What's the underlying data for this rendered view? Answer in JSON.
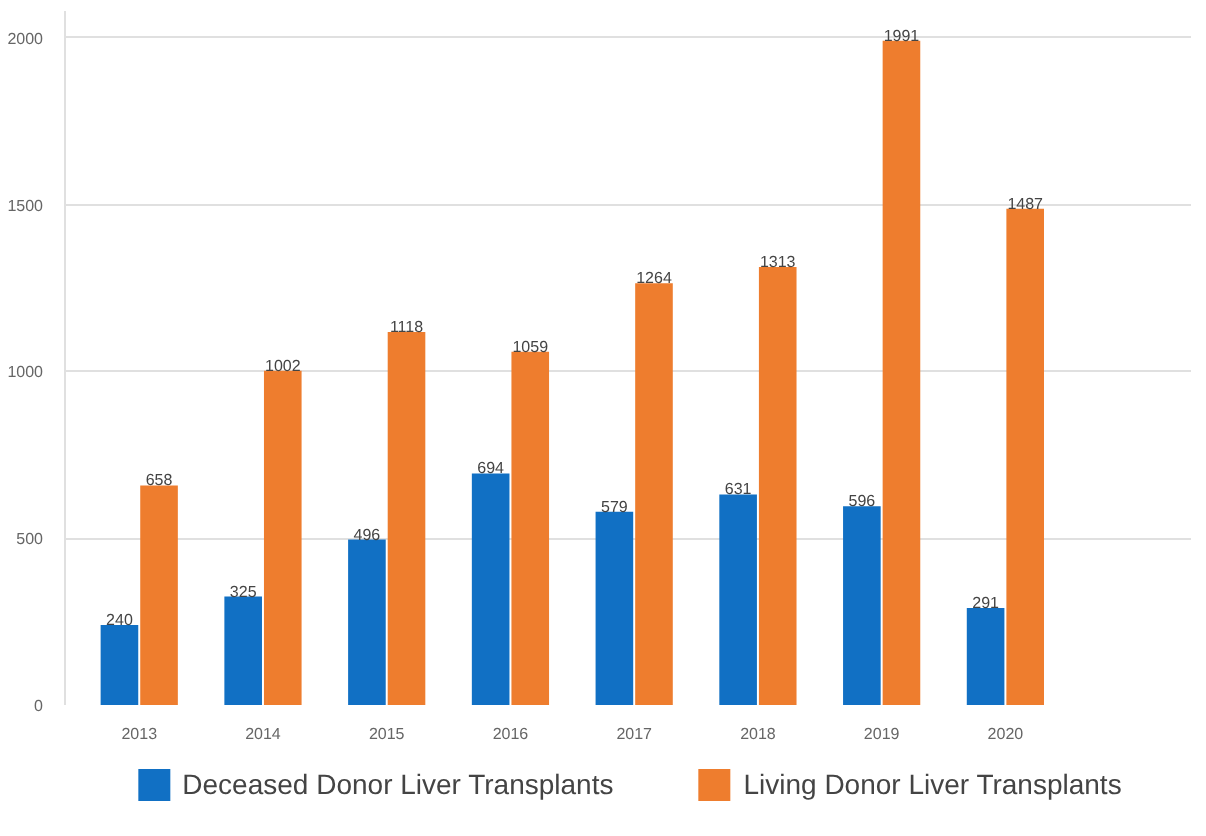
{
  "chart_data": {
    "type": "bar",
    "categories": [
      "2013",
      "2014",
      "2015",
      "2016",
      "2017",
      "2018",
      "2019",
      "2020"
    ],
    "series": [
      {
        "name": "Deceased Donor Liver Transplants",
        "color": "#1170c4",
        "values": [
          240,
          325,
          496,
          694,
          579,
          631,
          596,
          291
        ]
      },
      {
        "name": "Living Donor Liver Transplants",
        "color": "#ee7d2e",
        "values": [
          658,
          1002,
          1118,
          1059,
          1264,
          1313,
          1991,
          1487
        ]
      }
    ],
    "ylim": [
      0,
      2080
    ],
    "yticks": [
      0,
      500,
      1000,
      1500,
      2000
    ],
    "grid": "y",
    "data_labels": true,
    "legend": "bottom"
  }
}
